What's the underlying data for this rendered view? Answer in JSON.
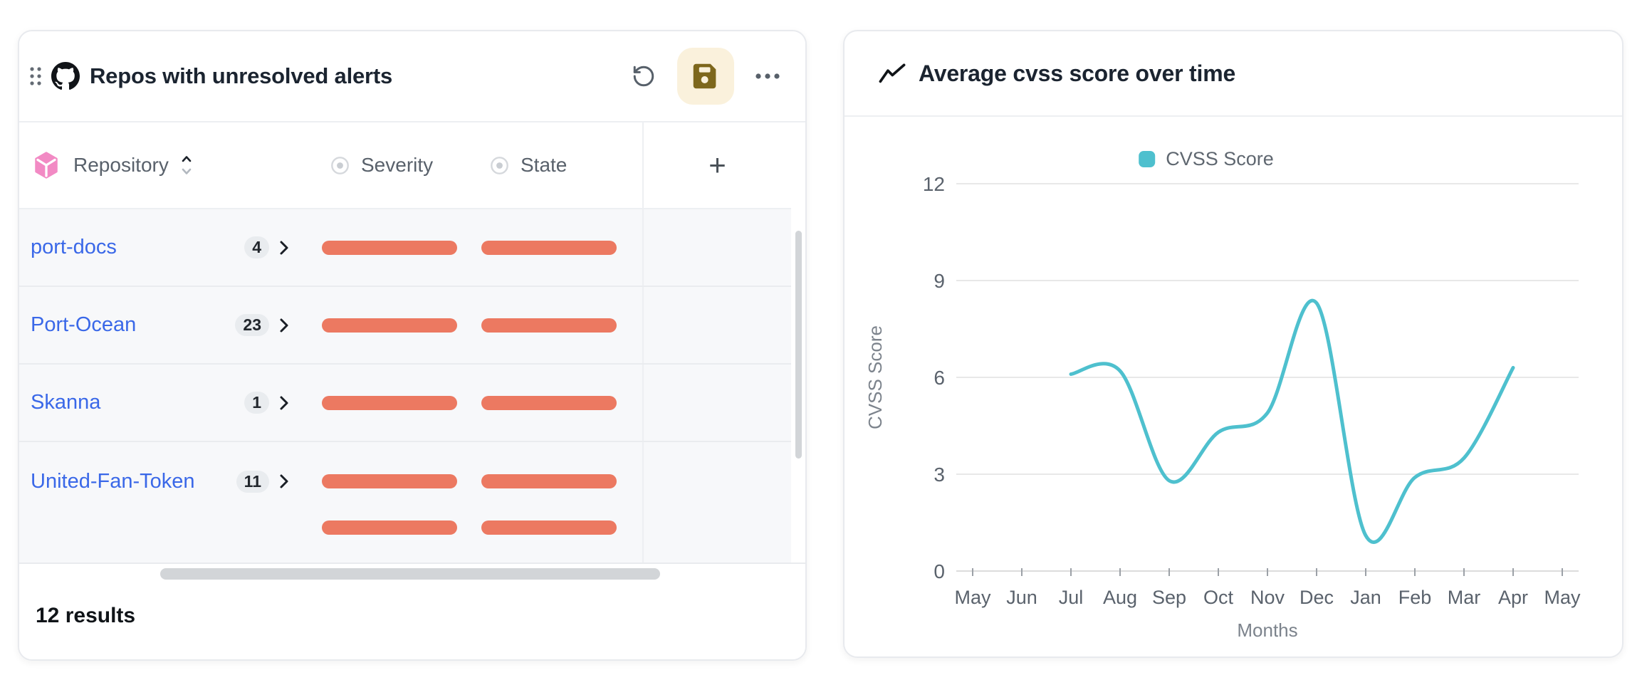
{
  "colors": {
    "panel_border": "#e8eaee",
    "title_text": "#1b2430",
    "icon_gray": "#57606a",
    "save_button_bg": "#faf1dc",
    "save_icon": "#7d671c",
    "column_header_text": "#59616b",
    "pink_icon": "#f28ac4",
    "row_bg": "#f7f8fa",
    "row_border": "#eaecef",
    "link_blue": "#3a68e8",
    "badge_bg": "#e9ecef",
    "badge_text": "#21262c",
    "redacted_bar": "#ec7961",
    "scrollbar": "#d2d5d8",
    "results_text": "#101418",
    "chart_line": "#4ec0ce",
    "grid_line": "#e8e8e8",
    "axis_line": "#dcdcdc",
    "tick_mark": "#9ca1a7",
    "tick_text": "#5a626c",
    "axis_title_text": "#7c838c"
  },
  "left_panel": {
    "title": "Repos with unresolved alerts",
    "toolbar": {
      "undo_icon": "rotate-ccw",
      "save_icon": "floppy-disk",
      "more_icon": "ellipsis"
    },
    "table": {
      "columns": [
        {
          "label": "Repository",
          "icon": "blueprint-cube-icon",
          "sortable": true
        },
        {
          "label": "Severity",
          "icon": "circle-dot-icon"
        },
        {
          "label": "State",
          "icon": "circle-dot-icon"
        }
      ],
      "add_column_label": "+",
      "rows": [
        {
          "repo": "port-docs",
          "alert_count": "4",
          "severity_redacted": true,
          "state_redacted": true
        },
        {
          "repo": "Port-Ocean",
          "alert_count": "23",
          "severity_redacted": true,
          "state_redacted": true
        },
        {
          "repo": "Skanna",
          "alert_count": "1",
          "severity_redacted": true,
          "state_redacted": true
        },
        {
          "repo": "United-Fan-Token",
          "alert_count": "11",
          "severity_redacted": true,
          "state_redacted": true
        }
      ],
      "overflow_row_redacted": true
    },
    "footer": {
      "results_text": "12 results"
    }
  },
  "right_panel": {
    "title": "Average cvss score over time"
  },
  "chart_data": {
    "type": "line",
    "title": "Average cvss score over time",
    "x_categories": [
      "May",
      "Jun",
      "Jul",
      "Aug",
      "Sep",
      "Oct",
      "Nov",
      "Dec",
      "Jan",
      "Feb",
      "Mar",
      "Apr",
      "May"
    ],
    "xlabel": "Months",
    "ylabel": "CVSS Score",
    "ylim": [
      0,
      12
    ],
    "yticks": [
      0,
      3,
      6,
      9,
      12
    ],
    "grid": true,
    "legend_position": "top",
    "series": [
      {
        "name": "CVSS Score",
        "color": "#4ec0ce",
        "points": [
          {
            "x": "Jul",
            "y": 6.1
          },
          {
            "x": "Aug",
            "y": 6.2
          },
          {
            "x": "Sep",
            "y": 2.8
          },
          {
            "x": "Oct",
            "y": 4.3
          },
          {
            "x": "Nov",
            "y": 4.9
          },
          {
            "x": "Dec",
            "y": 8.3
          },
          {
            "x": "Jan",
            "y": 1.1
          },
          {
            "x": "Feb",
            "y": 2.9
          },
          {
            "x": "Mar",
            "y": 3.5
          },
          {
            "x": "Apr",
            "y": 6.3
          }
        ]
      }
    ]
  }
}
